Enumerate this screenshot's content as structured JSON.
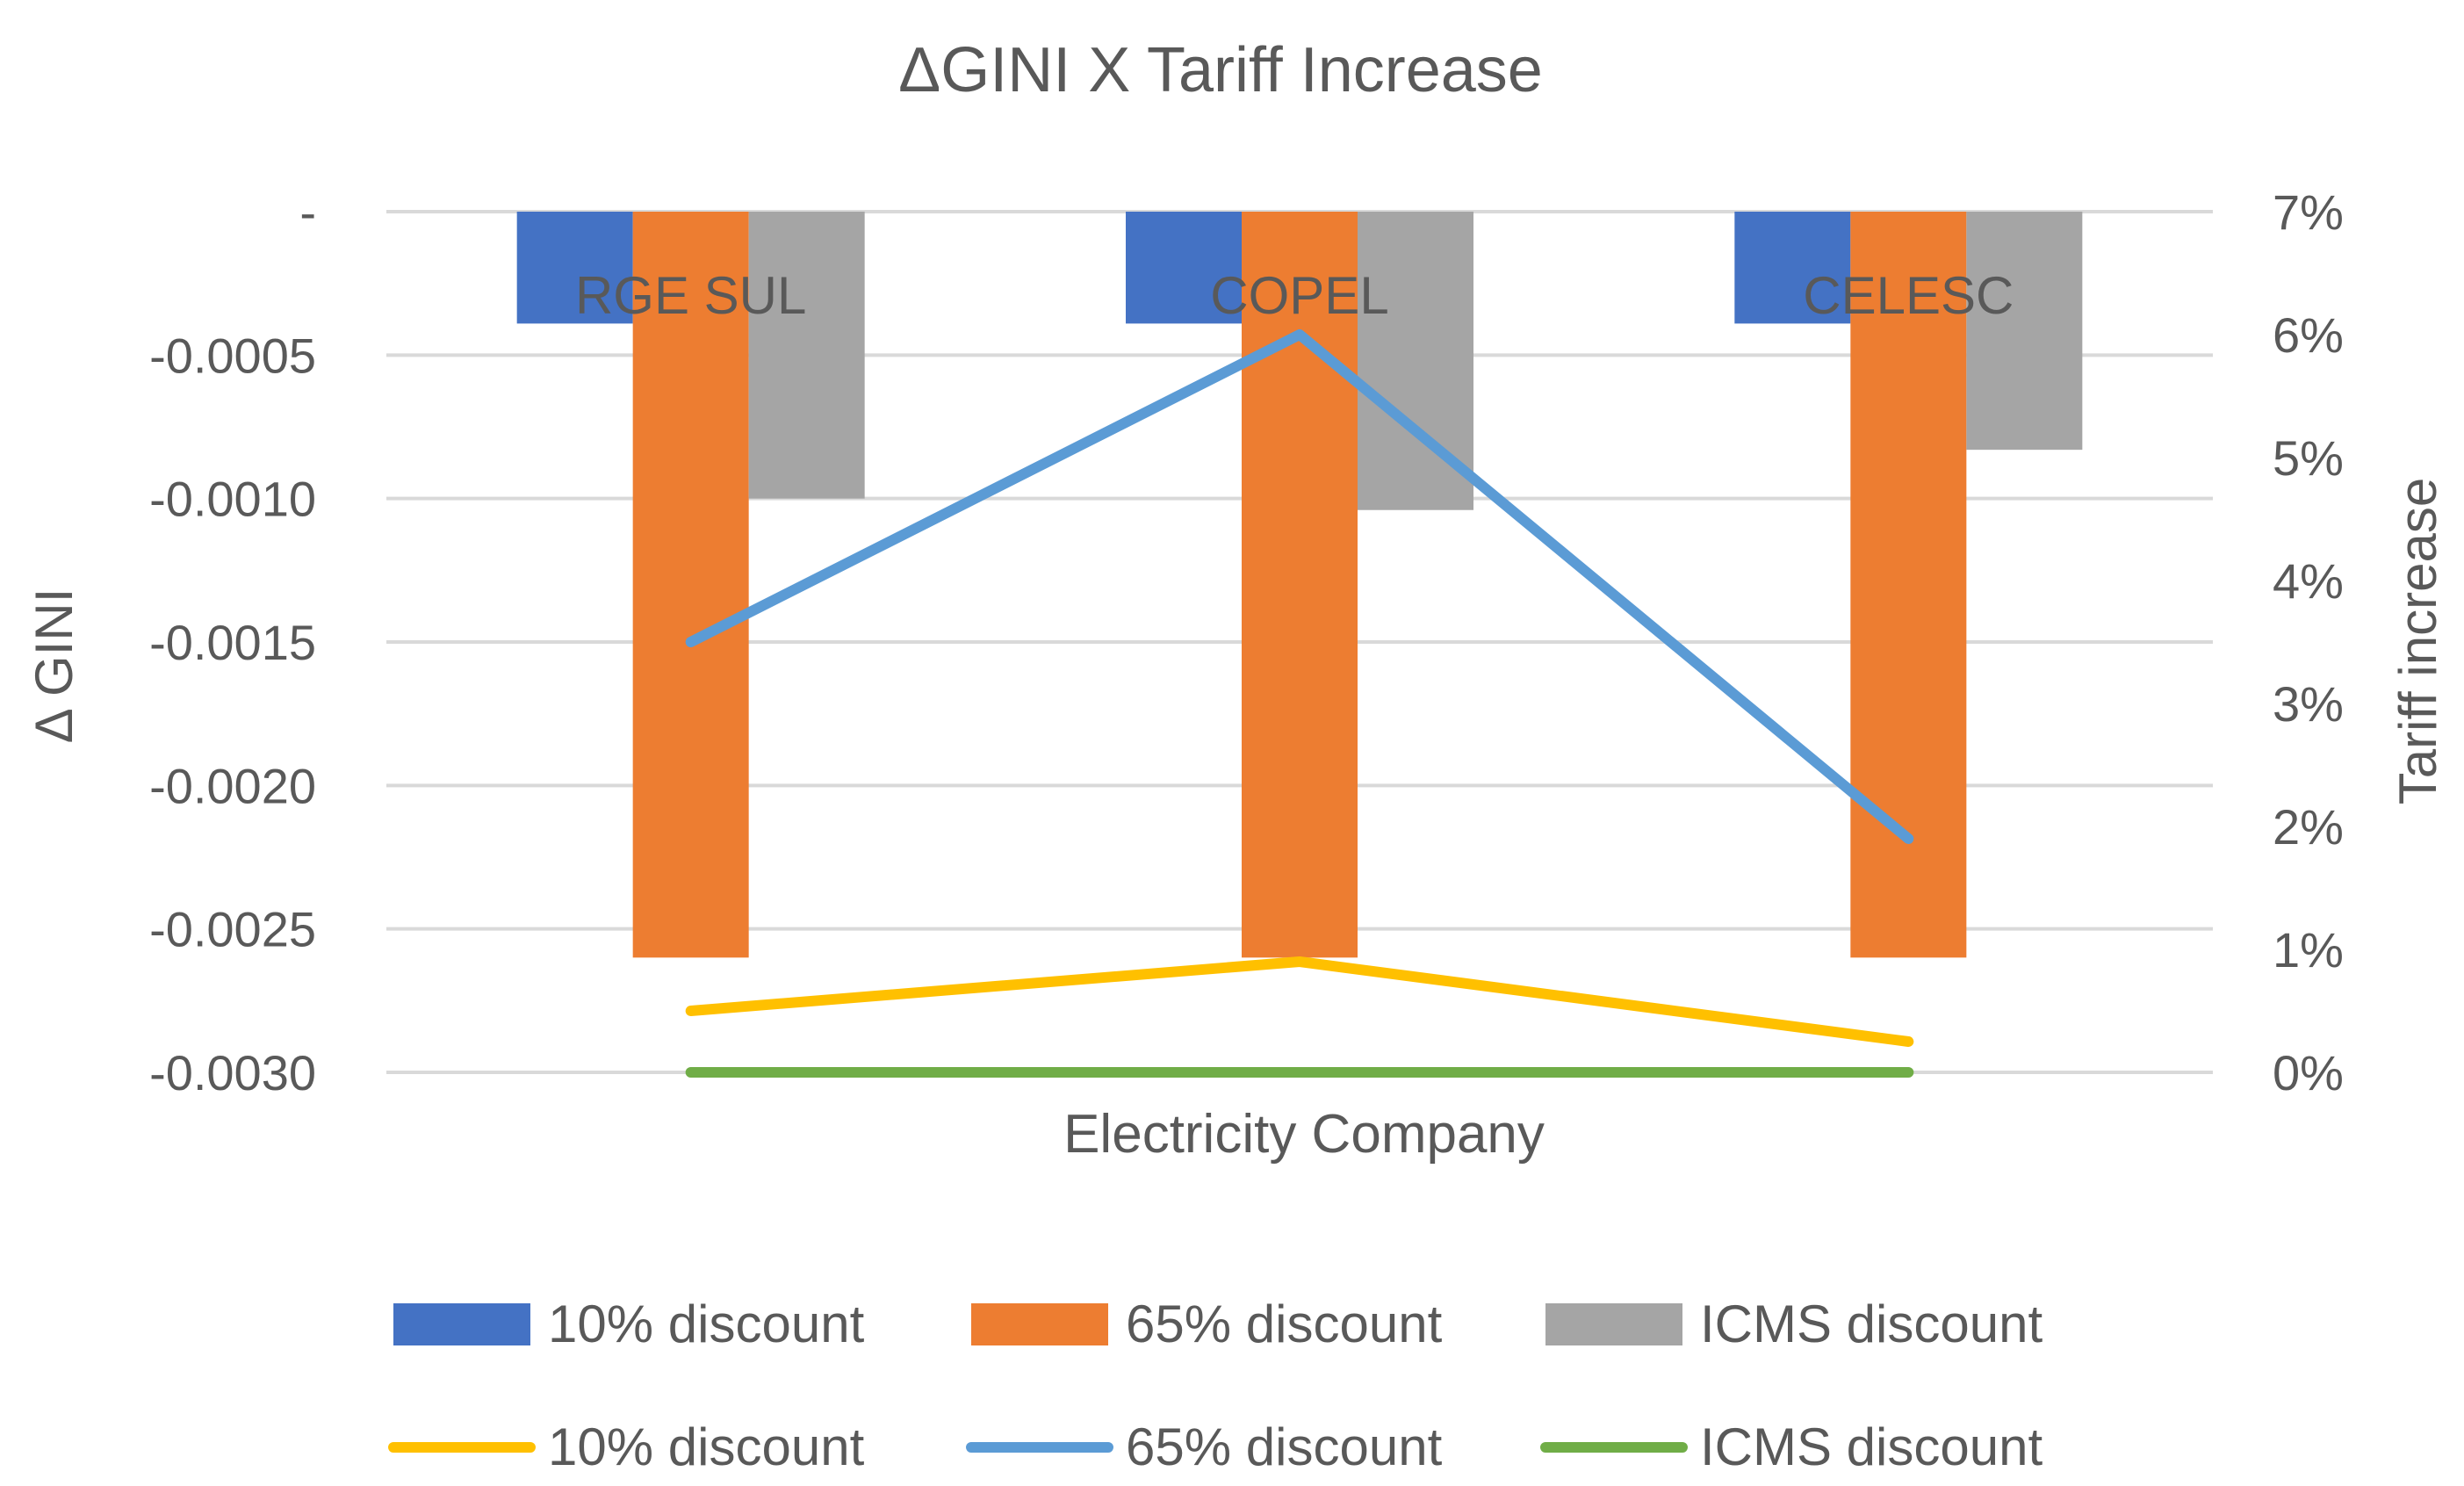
{
  "chart_data": {
    "type": "bar+line",
    "title": "ΔGINI X  Tariff Increase",
    "xlabel": "Electricity Company",
    "ylabel_left": "Δ GINI",
    "ylabel_right": "Tariff increase",
    "categories": [
      "RGE SUL",
      "COPEL",
      "CELESC"
    ],
    "left_axis": {
      "min": -0.003,
      "max": 0,
      "tick_labels": [
        "-",
        "-0.0005",
        "-0.0010",
        "-0.0015",
        "-0.0020",
        "-0.0025",
        "-0.0030"
      ],
      "tick_values": [
        0,
        -0.0005,
        -0.001,
        -0.0015,
        -0.002,
        -0.0025,
        -0.003
      ]
    },
    "right_axis": {
      "min": 0,
      "max": 0.07,
      "tick_labels": [
        "7%",
        "6%",
        "5%",
        "4%",
        "3%",
        "2%",
        "1%",
        "0%"
      ],
      "tick_values": [
        0.07,
        0.06,
        0.05,
        0.04,
        0.03,
        0.02,
        0.01,
        0
      ]
    },
    "bar_series": [
      {
        "name": "10%  discount",
        "color": "#4472C4",
        "values": [
          -0.00039,
          -0.00039,
          -0.00039
        ]
      },
      {
        "name": "65% discount",
        "color": "#ED7D31",
        "values": [
          -0.0026,
          -0.0026,
          -0.0026
        ]
      },
      {
        "name": "ICMS discount",
        "color": "#A5A5A5",
        "values": [
          -0.001,
          -0.00104,
          -0.00083
        ]
      }
    ],
    "line_series": [
      {
        "name": "10%  discount",
        "color": "#FFC000",
        "values": [
          0.005,
          0.009,
          0.0025
        ]
      },
      {
        "name": "65% discount",
        "color": "#5B9BD5",
        "values": [
          0.035,
          0.06,
          0.019
        ]
      },
      {
        "name": "ICMS discount",
        "color": "#70AD47",
        "values": [
          0.0,
          0.0,
          0.0
        ]
      }
    ],
    "grid": true,
    "legend_position": "bottom"
  }
}
